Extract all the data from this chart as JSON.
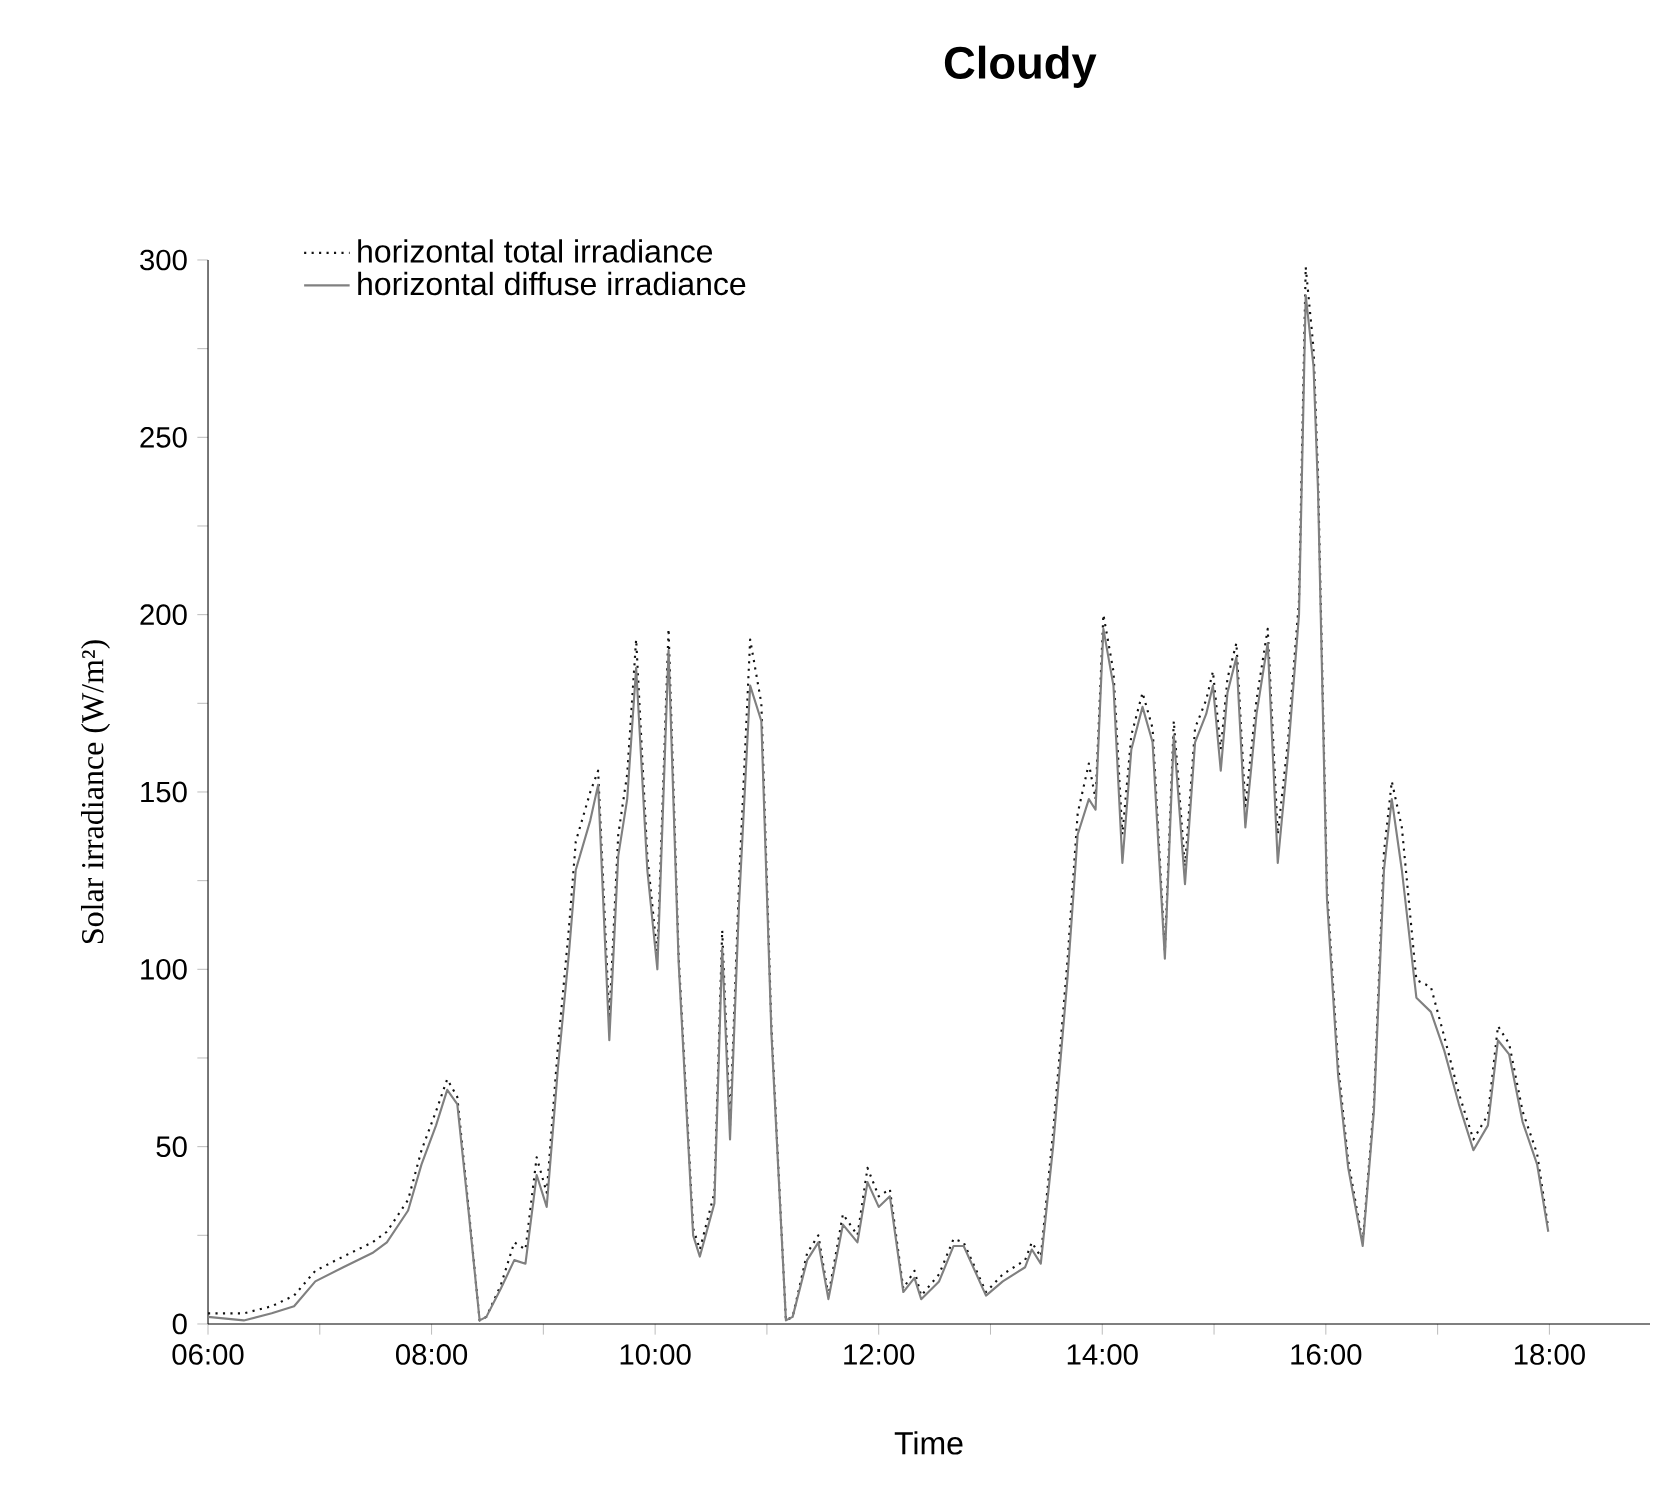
{
  "chart_data": {
    "type": "line",
    "title": "Cloudy",
    "xlabel": "Time",
    "ylabel": "Solar irradiance (W/m²)",
    "x": [
      6.0,
      6.32,
      6.57,
      6.77,
      6.96,
      7.21,
      7.47,
      7.6,
      7.79,
      7.91,
      8.04,
      8.14,
      8.23,
      8.33,
      8.43,
      8.49,
      8.62,
      8.74,
      8.84,
      8.94,
      9.03,
      9.13,
      9.23,
      9.29,
      9.42,
      9.49,
      9.59,
      9.67,
      9.75,
      9.83,
      9.93,
      10.02,
      10.12,
      10.21,
      10.34,
      10.4,
      10.53,
      10.6,
      10.67,
      10.75,
      10.85,
      10.95,
      11.04,
      11.17,
      11.23,
      11.36,
      11.46,
      11.55,
      11.68,
      11.81,
      11.9,
      12.0,
      12.1,
      12.22,
      12.32,
      12.38,
      12.54,
      12.67,
      12.76,
      12.96,
      13.11,
      13.31,
      13.37,
      13.45,
      13.56,
      13.69,
      13.78,
      13.88,
      13.94,
      14.01,
      14.1,
      14.18,
      14.26,
      14.36,
      14.45,
      14.56,
      14.64,
      14.74,
      14.83,
      14.93,
      14.99,
      15.06,
      15.12,
      15.2,
      15.28,
      15.38,
      15.48,
      15.57,
      15.66,
      15.76,
      15.82,
      15.89,
      15.93,
      16.01,
      16.11,
      16.2,
      16.33,
      16.43,
      16.52,
      16.59,
      16.68,
      16.81,
      16.94,
      17.06,
      17.19,
      17.32,
      17.45,
      17.54,
      17.64,
      17.76,
      17.89,
      17.99
    ],
    "series": [
      {
        "name": "horizontal total irradiance",
        "color": "#111111",
        "line_style": "dotted",
        "values": [
          3,
          3,
          5,
          8,
          15,
          19,
          23,
          26,
          35,
          49,
          60,
          69,
          64,
          33,
          1,
          2,
          11,
          23,
          21,
          47,
          37,
          78,
          112,
          136,
          150,
          156,
          86,
          138,
          155,
          193,
          132,
          104,
          196,
          104,
          27,
          21,
          37,
          111,
          56,
          124,
          193,
          175,
          84,
          1,
          2,
          20,
          25,
          8,
          31,
          25,
          44,
          36,
          38,
          10,
          15,
          8,
          14,
          24,
          23,
          9,
          14,
          18,
          23,
          19,
          54,
          103,
          144,
          158,
          148,
          200,
          184,
          138,
          166,
          178,
          168,
          105,
          170,
          129,
          168,
          176,
          184,
          162,
          182,
          192,
          146,
          176,
          196,
          138,
          164,
          204,
          298,
          275,
          239,
          123,
          73,
          46,
          23,
          62,
          133,
          153,
          140,
          97,
          95,
          81,
          65,
          52,
          59,
          84,
          79,
          60,
          48,
          27
        ]
      },
      {
        "name": "horizontal diffuse irradiance",
        "color": "#808080",
        "line_style": "solid",
        "values": [
          2,
          1,
          3,
          5,
          12,
          16,
          20,
          23,
          32,
          45,
          56,
          66,
          62,
          32,
          1,
          2,
          10,
          18,
          17,
          42,
          33,
          72,
          105,
          128,
          142,
          152,
          80,
          132,
          148,
          185,
          128,
          100,
          190,
          102,
          25,
          19,
          34,
          106,
          52,
          118,
          180,
          170,
          82,
          1,
          2,
          18,
          23,
          7,
          28,
          23,
          40,
          33,
          36,
          9,
          13,
          7,
          12,
          22,
          22,
          8,
          12,
          16,
          21,
          17,
          50,
          98,
          138,
          148,
          145,
          196,
          180,
          130,
          162,
          174,
          164,
          103,
          166,
          124,
          164,
          172,
          180,
          156,
          178,
          188,
          140,
          172,
          192,
          130,
          160,
          200,
          290,
          270,
          235,
          120,
          70,
          44,
          22,
          60,
          128,
          148,
          128,
          92,
          88,
          77,
          62,
          49,
          56,
          80,
          76,
          57,
          45,
          26
        ]
      }
    ],
    "xlim": [
      6,
      18.9
    ],
    "xticks": [
      {
        "value": 6,
        "label": "06:00"
      },
      {
        "value": 7,
        "label": null
      },
      {
        "value": 8,
        "label": "08:00"
      },
      {
        "value": 9,
        "label": null
      },
      {
        "value": 10,
        "label": "10:00"
      },
      {
        "value": 11,
        "label": null
      },
      {
        "value": 12,
        "label": "12:00"
      },
      {
        "value": 13,
        "label": null
      },
      {
        "value": 14,
        "label": "14:00"
      },
      {
        "value": 15,
        "label": null
      },
      {
        "value": 16,
        "label": "16:00"
      },
      {
        "value": 17,
        "label": null
      },
      {
        "value": 18,
        "label": "18:00"
      }
    ],
    "ylim": [
      0,
      300
    ],
    "yticks": [
      0,
      {
        "value": 25,
        "label": null
      },
      50,
      {
        "value": 75,
        "label": null
      },
      100,
      {
        "value": 125,
        "label": null
      },
      150,
      {
        "value": 175,
        "label": null
      },
      200,
      {
        "value": 225,
        "label": null
      },
      250,
      {
        "value": 275,
        "label": null
      },
      300
    ],
    "legend": "top left"
  }
}
